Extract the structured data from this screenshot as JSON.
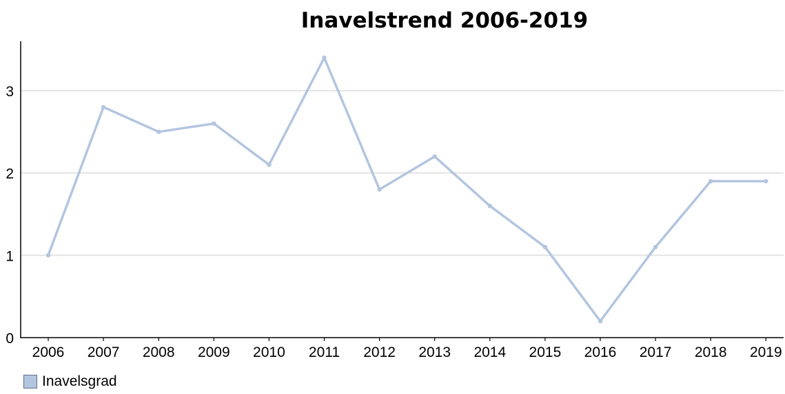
{
  "chart_data": {
    "type": "line",
    "title": "Inavelstrend 2006-2019",
    "xlabel": "",
    "ylabel": "",
    "categories": [
      "2006",
      "2007",
      "2008",
      "2009",
      "2010",
      "2011",
      "2012",
      "2013",
      "2014",
      "2015",
      "2016",
      "2017",
      "2018",
      "2019"
    ],
    "series": [
      {
        "name": "Inavelsgrad",
        "color": "#b3c5df",
        "values": [
          1.0,
          2.8,
          2.5,
          2.6,
          2.1,
          3.4,
          1.8,
          2.2,
          1.6,
          1.1,
          0.2,
          1.1,
          1.9,
          1.9
        ]
      }
    ],
    "yticks": [
      0,
      1,
      2,
      3
    ],
    "ylim": [
      0,
      3.6
    ],
    "grid": true,
    "legend_position": "bottom-left",
    "gridline_color": "#e3e3e3",
    "axis_color": "#000000"
  }
}
